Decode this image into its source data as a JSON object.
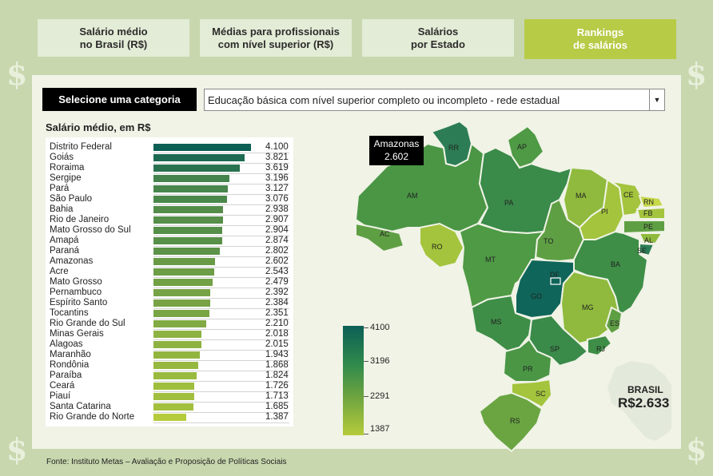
{
  "tabs": [
    {
      "label_line1": "Salário médio",
      "label_line2": "no Brasil (R$)"
    },
    {
      "label_line1": "Médias para profissionais",
      "label_line2": "com nível superior (R$)"
    },
    {
      "label_line1": "Salários",
      "label_line2": "por Estado"
    },
    {
      "label_line1": "Rankings",
      "label_line2": "de salários"
    }
  ],
  "category": {
    "label": "Selecione uma categoria",
    "selected": "Educação básica com nível superior completo ou incompleto - rede estadual"
  },
  "list_title": "Salário médio, em R$",
  "ranking": [
    {
      "state": "Distrito Federal",
      "value": 4100,
      "display": "4.100"
    },
    {
      "state": "Goiás",
      "value": 3821,
      "display": "3.821"
    },
    {
      "state": "Roraima",
      "value": 3619,
      "display": "3.619"
    },
    {
      "state": "Sergipe",
      "value": 3196,
      "display": "3.196"
    },
    {
      "state": "Pará",
      "value": 3127,
      "display": "3.127"
    },
    {
      "state": "São Paulo",
      "value": 3076,
      "display": "3.076"
    },
    {
      "state": "Bahia",
      "value": 2938,
      "display": "2.938"
    },
    {
      "state": "Rio de Janeiro",
      "value": 2907,
      "display": "2.907"
    },
    {
      "state": "Mato Grosso do Sul",
      "value": 2904,
      "display": "2.904"
    },
    {
      "state": "Amapá",
      "value": 2874,
      "display": "2.874"
    },
    {
      "state": "Paraná",
      "value": 2802,
      "display": "2.802"
    },
    {
      "state": "Amazonas",
      "value": 2602,
      "display": "2.602"
    },
    {
      "state": "Acre",
      "value": 2543,
      "display": "2.543"
    },
    {
      "state": "Mato Grosso",
      "value": 2479,
      "display": "2.479"
    },
    {
      "state": "Pernambuco",
      "value": 2392,
      "display": "2.392"
    },
    {
      "state": "Espírito Santo",
      "value": 2384,
      "display": "2.384"
    },
    {
      "state": "Tocantins",
      "value": 2351,
      "display": "2.351"
    },
    {
      "state": "Rio Grande do Sul",
      "value": 2210,
      "display": "2.210"
    },
    {
      "state": "Minas Gerais",
      "value": 2018,
      "display": "2.018"
    },
    {
      "state": "Alagoas",
      "value": 2015,
      "display": "2.015"
    },
    {
      "state": "Maranhão",
      "value": 1943,
      "display": "1.943"
    },
    {
      "state": "Rondônia",
      "value": 1868,
      "display": "1.868"
    },
    {
      "state": "Paraíba",
      "value": 1824,
      "display": "1.824"
    },
    {
      "state": "Ceará",
      "value": 1726,
      "display": "1.726"
    },
    {
      "state": "Piauí",
      "value": 1713,
      "display": "1.713"
    },
    {
      "state": "Santa Catarina",
      "value": 1685,
      "display": "1.685"
    },
    {
      "state": "Rio Grande do Norte",
      "value": 1387,
      "display": "1.387"
    }
  ],
  "tooltip": {
    "state": "Amazonas",
    "value": "2.602"
  },
  "legend": {
    "max": "4100",
    "mid_high": "3196",
    "mid_low": "2291",
    "min": "1387"
  },
  "map_labels": {
    "RR": "RR",
    "AP": "AP",
    "AM": "AM",
    "PA": "PA",
    "MA": "MA",
    "CE": "CE",
    "RN": "RN",
    "PB": "PB",
    "PE": "PE",
    "AL": "AL",
    "SE": "SE",
    "PI": "PI",
    "AC": "AC",
    "RO": "RO",
    "TO": "TO",
    "BA": "BA",
    "MT": "MT",
    "DF": "DF",
    "GO": "GO",
    "MG": "MG",
    "ES": "ES",
    "MS": "MS",
    "SP": "SP",
    "RJ": "RJ",
    "PR": "PR",
    "SC": "SC",
    "RS": "RS"
  },
  "map_pe_label": "FB",
  "brasil": {
    "name": "BRASIL",
    "value": "R$2.633"
  },
  "source": "Fonte: Instituto Metas – Avaliação e Proposição de Políticas Sociais",
  "colors": {
    "dark": "#0b5f55",
    "mid_dark": "#2f8a4c",
    "mid": "#4f9a45",
    "light": "#8fba3d",
    "lightest": "#b5cb3b",
    "accent": "#b7cb47"
  }
}
